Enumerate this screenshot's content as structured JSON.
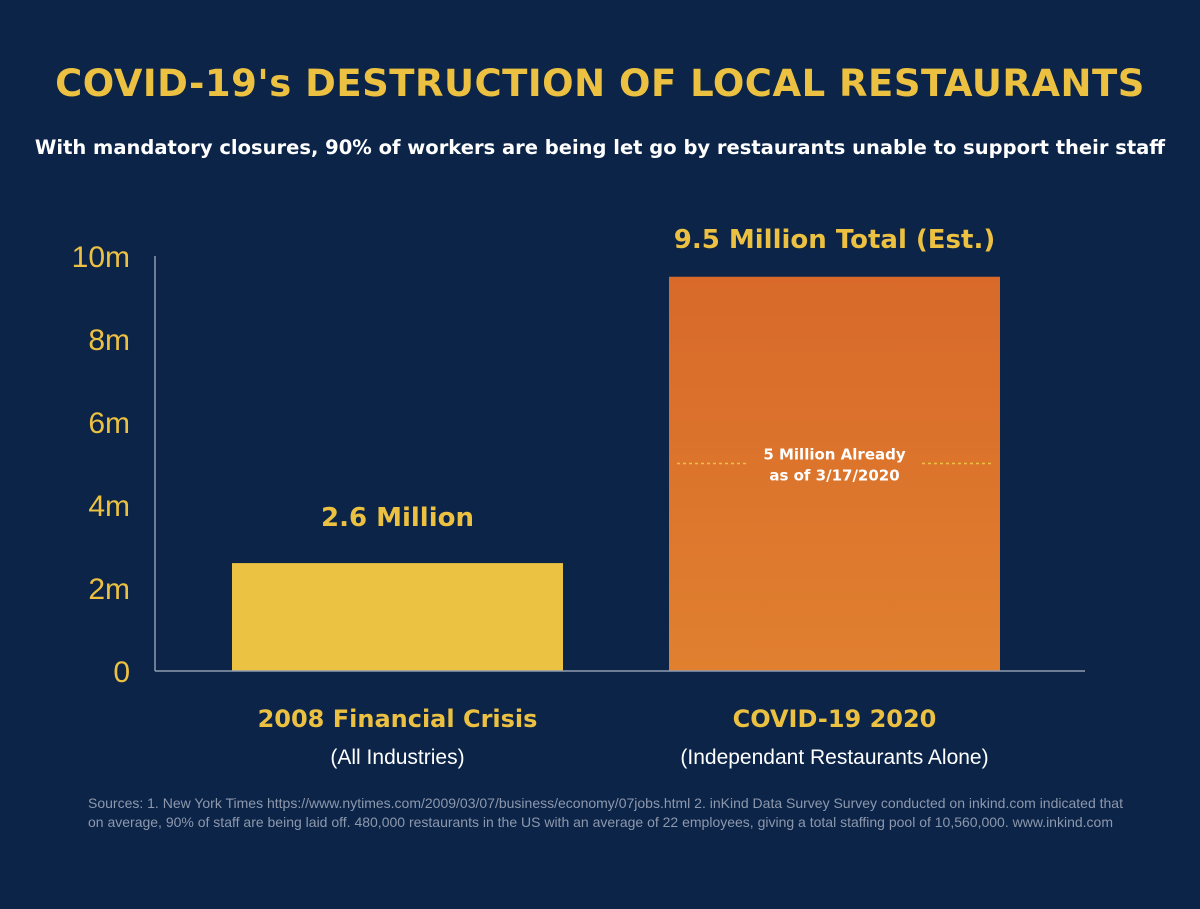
{
  "colors": {
    "background": "#0c2447",
    "accent_yellow": "#ecc142",
    "bar_2008": "#ebc242",
    "bar_covid_top": "#d8692a",
    "bar_covid_bottom": "#e0802f",
    "axis": "#8f9bb1",
    "text_white": "#ffffff",
    "sources_text": "#8d98ad"
  },
  "header": {
    "title": "COVID-19's DESTRUCTION OF LOCAL RESTAURANTS",
    "subtitle": "With mandatory closures, 90% of workers are being let go by restaurants unable to support their staff"
  },
  "chart_data": {
    "type": "bar",
    "title": "COVID-19's DESTRUCTION OF LOCAL RESTAURANTS",
    "subtitle": "With mandatory closures, 90% of workers are being let go by restaurants unable to support their staff",
    "categories": [
      "2008 Financial Crisis",
      "COVID-19 2020"
    ],
    "category_sublabels": [
      "(All Industries)",
      "(Independant Restaurants Alone)"
    ],
    "values": [
      2.6,
      9.5
    ],
    "value_labels": [
      "2.6 Million",
      "9.5 Million Total (Est.)"
    ],
    "ylim": [
      0,
      10
    ],
    "yticks": [
      0,
      2,
      4,
      6,
      8,
      10
    ],
    "ytick_labels": [
      "0",
      "2m",
      "4m",
      "6m",
      "8m",
      "10m"
    ],
    "annotation": {
      "bar_index": 1,
      "value": 5,
      "line1": "5 Million Already",
      "line2": "as of 3/17/2020"
    },
    "grid": false,
    "legend": "none"
  },
  "sources": "Sources:  1. New York Times https://www.nytimes.com/2009/03/07/business/economy/07jobs.html  2. inKind Data Survey  Survey conducted on inkind.com indicated that on average, 90% of staff are being laid off. 480,000 restaurants in the US with an average of 22 employees, giving a total staffing pool of 10,560,000. www.inkind.com"
}
